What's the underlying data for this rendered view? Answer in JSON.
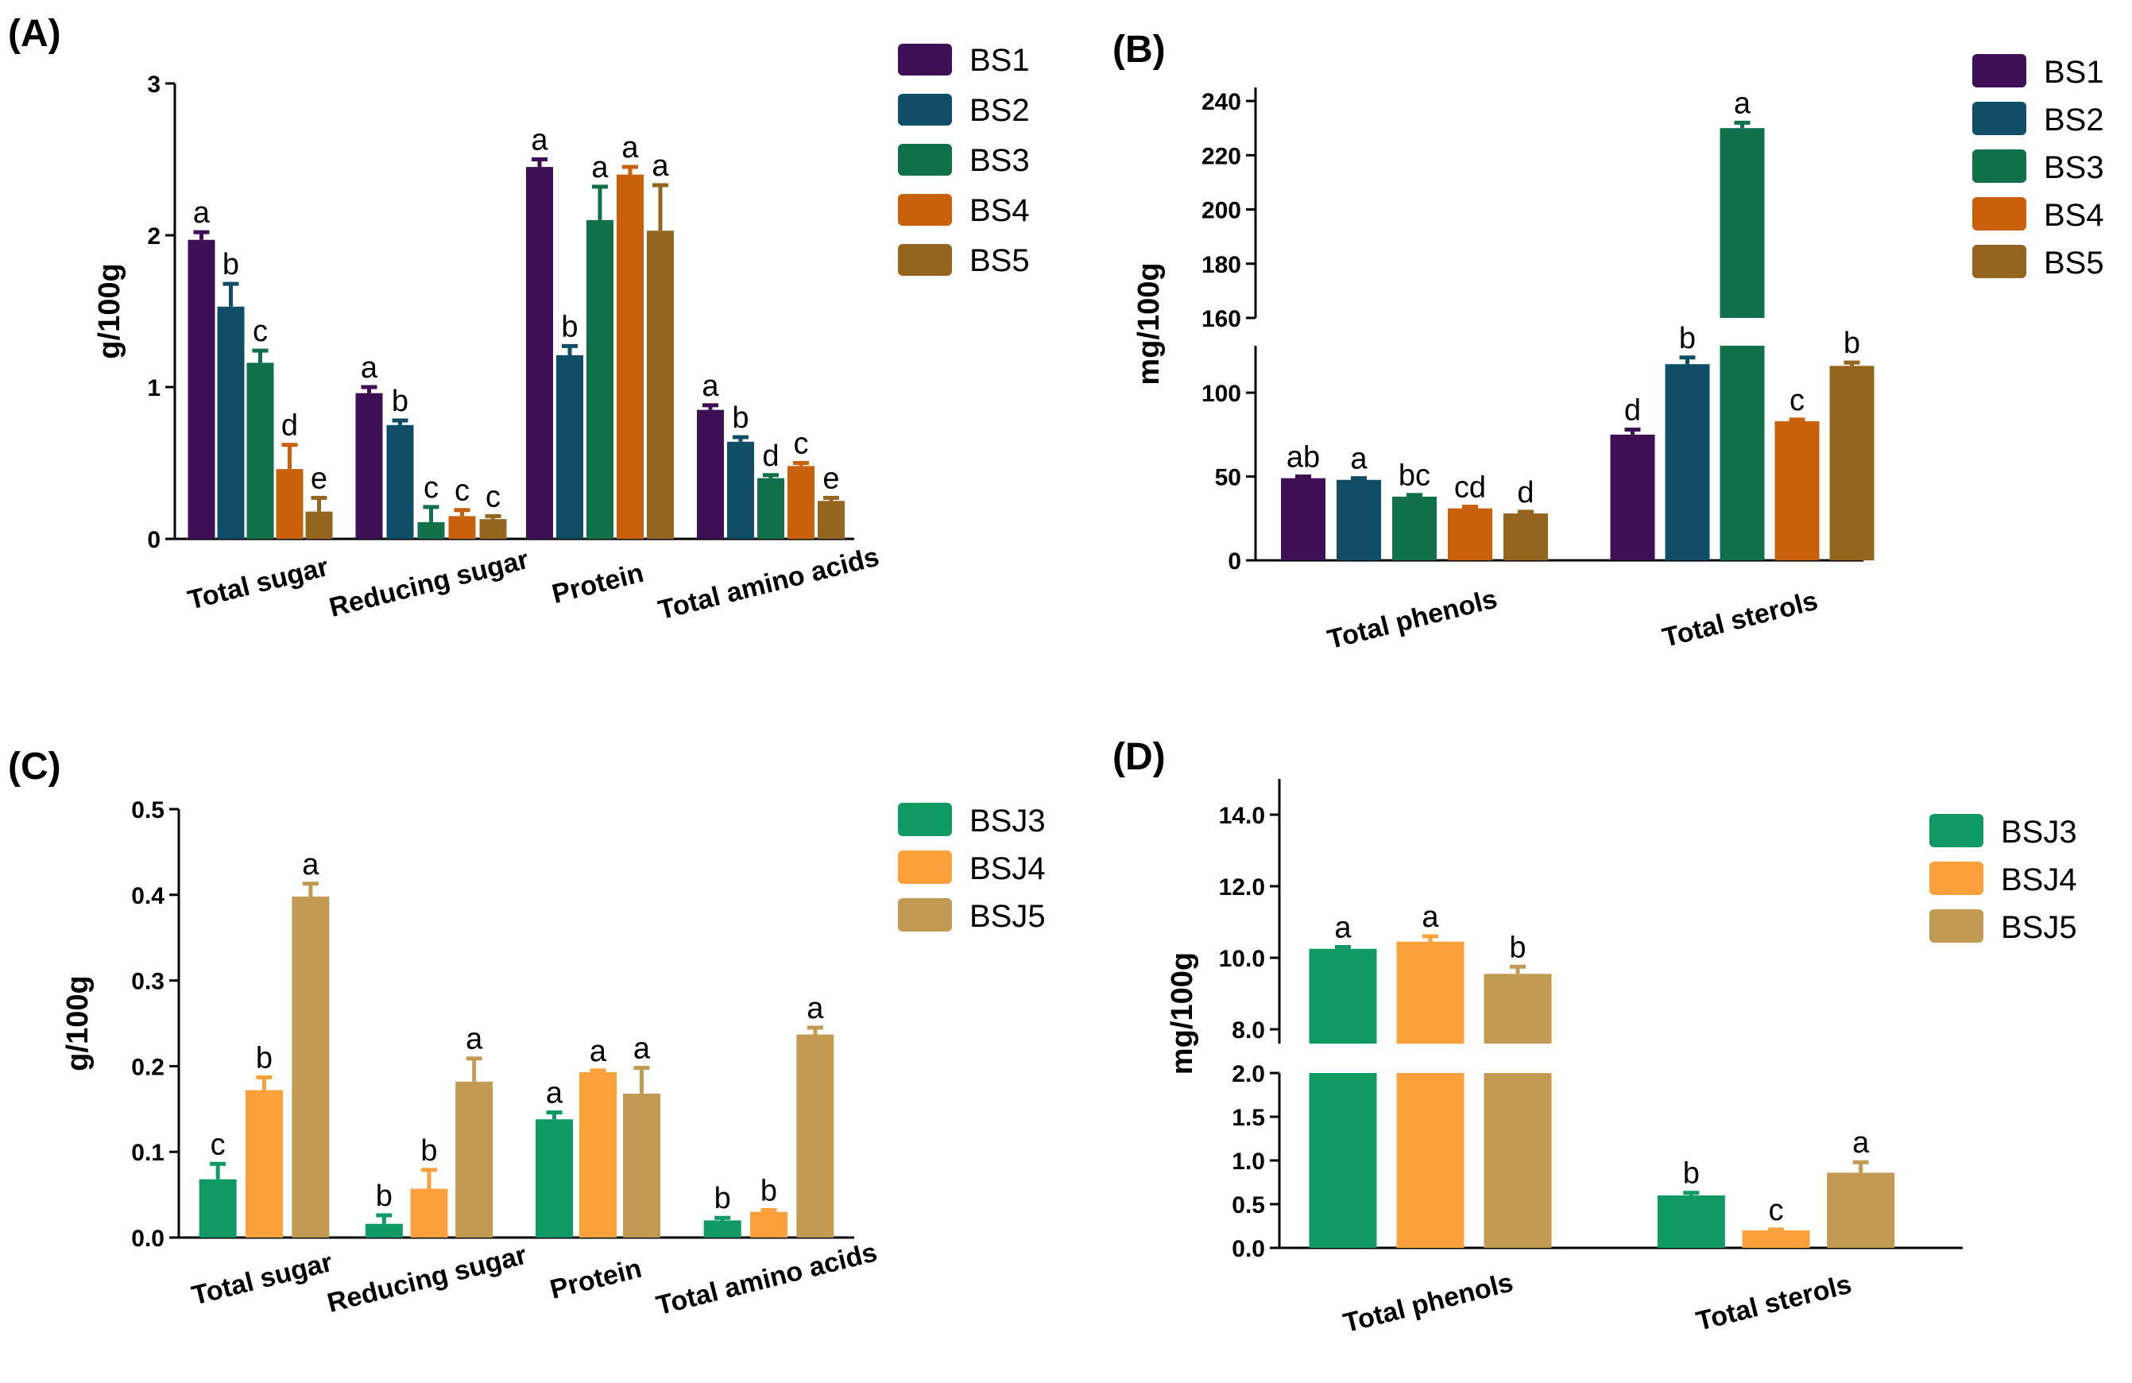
{
  "chart_data": [
    {
      "panel": "(A)",
      "type": "bar",
      "ylabel": "g/100g",
      "ylim": [
        0,
        3
      ],
      "yticks": [
        0,
        1,
        2,
        3
      ],
      "categories": [
        "Total sugar",
        "Reducing sugar",
        "Protein",
        "Total amino acids"
      ],
      "series": [
        {
          "name": "BS1",
          "color": "#3E0F55",
          "values": [
            1.97,
            0.96,
            2.45,
            0.85
          ],
          "errors": [
            0.05,
            0.04,
            0.05,
            0.03
          ],
          "letters": [
            "a",
            "a",
            "a",
            "a"
          ]
        },
        {
          "name": "BS2",
          "color": "#0F4E66",
          "values": [
            1.53,
            0.75,
            1.21,
            0.64
          ],
          "errors": [
            0.15,
            0.03,
            0.06,
            0.03
          ],
          "letters": [
            "b",
            "b",
            "b",
            "b"
          ]
        },
        {
          "name": "BS3",
          "color": "#10704A",
          "values": [
            1.16,
            0.11,
            2.1,
            0.4
          ],
          "errors": [
            0.08,
            0.1,
            0.22,
            0.02
          ],
          "letters": [
            "c",
            "c",
            "a",
            "d"
          ]
        },
        {
          "name": "BS4",
          "color": "#C8600C",
          "values": [
            0.46,
            0.15,
            2.4,
            0.48
          ],
          "errors": [
            0.16,
            0.04,
            0.05,
            0.02
          ],
          "letters": [
            "d",
            "c",
            "a",
            "c"
          ]
        },
        {
          "name": "BS5",
          "color": "#93651E",
          "values": [
            0.18,
            0.13,
            2.03,
            0.25
          ],
          "errors": [
            0.09,
            0.02,
            0.3,
            0.02
          ],
          "letters": [
            "e",
            "c",
            "a",
            "e"
          ]
        }
      ]
    },
    {
      "panel": "(B)",
      "type": "bar",
      "ylabel": "mg/100g",
      "ylim": [
        0,
        245
      ],
      "axis_break": [
        128,
        160
      ],
      "yticks": [
        0,
        50,
        100,
        160,
        180,
        200,
        220,
        240
      ],
      "categories": [
        "Total phenols",
        "Total sterols"
      ],
      "series": [
        {
          "name": "BS1",
          "color": "#3E0F55",
          "values": [
            49,
            75
          ],
          "errors": [
            1,
            3
          ],
          "letters": [
            "ab",
            "d"
          ]
        },
        {
          "name": "BS2",
          "color": "#0F4E66",
          "values": [
            48,
            117
          ],
          "errors": [
            1,
            4
          ],
          "letters": [
            "a",
            "b"
          ]
        },
        {
          "name": "BS3",
          "color": "#10704A",
          "values": [
            38,
            230
          ],
          "errors": [
            1,
            2
          ],
          "letters": [
            "bc",
            "a"
          ]
        },
        {
          "name": "BS4",
          "color": "#C8600C",
          "values": [
            31,
            83
          ],
          "errors": [
            1,
            1
          ],
          "letters": [
            "cd",
            "c"
          ]
        },
        {
          "name": "BS5",
          "color": "#93651E",
          "values": [
            28,
            116
          ],
          "errors": [
            1,
            2
          ],
          "letters": [
            "d",
            "b"
          ]
        }
      ]
    },
    {
      "panel": "(C)",
      "type": "bar",
      "ylabel": "g/100g",
      "ylim": [
        0,
        0.5
      ],
      "yticks": [
        0.0,
        0.1,
        0.2,
        0.3,
        0.4,
        0.5
      ],
      "categories": [
        "Total sugar",
        "Reducing sugar",
        "Protein",
        "Total amino acids"
      ],
      "series": [
        {
          "name": "BSJ3",
          "color": "#0E9A62",
          "values": [
            0.068,
            0.016,
            0.138,
            0.02
          ],
          "errors": [
            0.018,
            0.01,
            0.008,
            0.003
          ],
          "letters": [
            "c",
            "b",
            "a",
            "b"
          ]
        },
        {
          "name": "BSJ4",
          "color": "#FBA03B",
          "values": [
            0.172,
            0.057,
            0.193,
            0.03
          ],
          "errors": [
            0.015,
            0.022,
            0.002,
            0.002
          ],
          "letters": [
            "b",
            "b",
            "a",
            "b"
          ]
        },
        {
          "name": "BSJ5",
          "color": "#C39A53",
          "values": [
            0.398,
            0.182,
            0.168,
            0.237
          ],
          "errors": [
            0.015,
            0.027,
            0.03,
            0.008
          ],
          "letters": [
            "a",
            "a",
            "a",
            "a"
          ]
        }
      ]
    },
    {
      "panel": "(D)",
      "type": "bar",
      "ylabel": "mg/100g",
      "ylim": [
        0,
        15
      ],
      "axis_break": [
        2.0,
        7.6
      ],
      "yticks": [
        0.0,
        0.5,
        1.0,
        1.5,
        2.0,
        8,
        10,
        12,
        14
      ],
      "categories": [
        "Total phenols",
        "Total sterols"
      ],
      "series": [
        {
          "name": "BSJ3",
          "color": "#0E9A62",
          "values": [
            10.25,
            0.6
          ],
          "errors": [
            0.05,
            0.03
          ],
          "letters": [
            "a",
            "b"
          ]
        },
        {
          "name": "BSJ4",
          "color": "#FBA03B",
          "values": [
            10.45,
            0.2
          ],
          "errors": [
            0.15,
            0.01
          ],
          "letters": [
            "a",
            "c"
          ]
        },
        {
          "name": "BSJ5",
          "color": "#C39A53",
          "values": [
            9.55,
            0.86
          ],
          "errors": [
            0.2,
            0.12
          ],
          "letters": [
            "b",
            "a"
          ]
        }
      ]
    }
  ]
}
